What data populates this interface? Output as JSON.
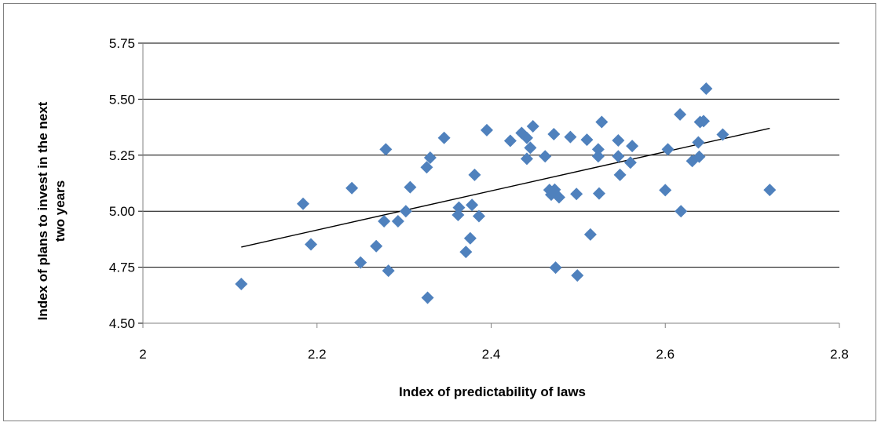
{
  "chart_data": {
    "type": "scatter",
    "xlabel": "Index of predictability of laws",
    "ylabel_lines": [
      "Index of plans to invest in the next",
      "two years"
    ],
    "xlim": [
      2,
      2.8
    ],
    "ylim": [
      4.5,
      5.75
    ],
    "x_ticks": [
      2,
      2.2,
      2.4,
      2.6,
      2.8
    ],
    "x_tick_labels": [
      "2",
      "2.2",
      "2.4",
      "2.6",
      "2.8"
    ],
    "y_ticks": [
      4.5,
      4.75,
      5.0,
      5.25,
      5.5,
      5.75
    ],
    "y_tick_labels": [
      "4.50",
      "4.75",
      "5.00",
      "5.25",
      "5.50",
      "5.75"
    ],
    "grid": "horizontal",
    "marker": "diamond",
    "marker_color": "#4f81bd",
    "trendline": {
      "x": [
        2.113,
        2.72
      ],
      "y": [
        4.84,
        5.37
      ],
      "color": "#000000"
    },
    "points": [
      [
        2.113,
        4.675
      ],
      [
        2.184,
        5.033
      ],
      [
        2.193,
        4.852
      ],
      [
        2.24,
        5.103
      ],
      [
        2.25,
        4.771
      ],
      [
        2.268,
        4.844
      ],
      [
        2.277,
        4.955
      ],
      [
        2.279,
        5.276
      ],
      [
        2.282,
        4.734
      ],
      [
        2.293,
        4.955
      ],
      [
        2.302,
        5.0
      ],
      [
        2.307,
        5.107
      ],
      [
        2.326,
        5.196
      ],
      [
        2.327,
        4.614
      ],
      [
        2.33,
        5.239
      ],
      [
        2.346,
        5.327
      ],
      [
        2.362,
        4.983
      ],
      [
        2.363,
        5.016
      ],
      [
        2.371,
        4.818
      ],
      [
        2.376,
        4.879
      ],
      [
        2.378,
        5.028
      ],
      [
        2.381,
        5.162
      ],
      [
        2.386,
        4.978
      ],
      [
        2.395,
        5.362
      ],
      [
        2.422,
        5.314
      ],
      [
        2.435,
        5.349
      ],
      [
        2.441,
        5.327
      ],
      [
        2.441,
        5.234
      ],
      [
        2.445,
        5.283
      ],
      [
        2.448,
        5.379
      ],
      [
        2.462,
        5.245
      ],
      [
        2.467,
        5.095
      ],
      [
        2.469,
        5.074
      ],
      [
        2.472,
        5.344
      ],
      [
        2.473,
        5.096
      ],
      [
        2.474,
        4.748
      ],
      [
        2.478,
        5.062
      ],
      [
        2.491,
        5.331
      ],
      [
        2.498,
        5.077
      ],
      [
        2.499,
        4.713
      ],
      [
        2.51,
        5.319
      ],
      [
        2.514,
        4.896
      ],
      [
        2.523,
        5.276
      ],
      [
        2.523,
        5.245
      ],
      [
        2.524,
        5.079
      ],
      [
        2.527,
        5.398
      ],
      [
        2.546,
        5.245
      ],
      [
        2.546,
        5.316
      ],
      [
        2.548,
        5.162
      ],
      [
        2.56,
        5.217
      ],
      [
        2.562,
        5.291
      ],
      [
        2.6,
        5.094
      ],
      [
        2.603,
        5.276
      ],
      [
        2.617,
        5.432
      ],
      [
        2.618,
        5.0
      ],
      [
        2.631,
        5.224
      ],
      [
        2.638,
        5.307
      ],
      [
        2.639,
        5.243
      ],
      [
        2.64,
        5.398
      ],
      [
        2.644,
        5.402
      ],
      [
        2.647,
        5.547
      ],
      [
        2.666,
        5.342
      ],
      [
        2.72,
        5.095
      ]
    ]
  }
}
